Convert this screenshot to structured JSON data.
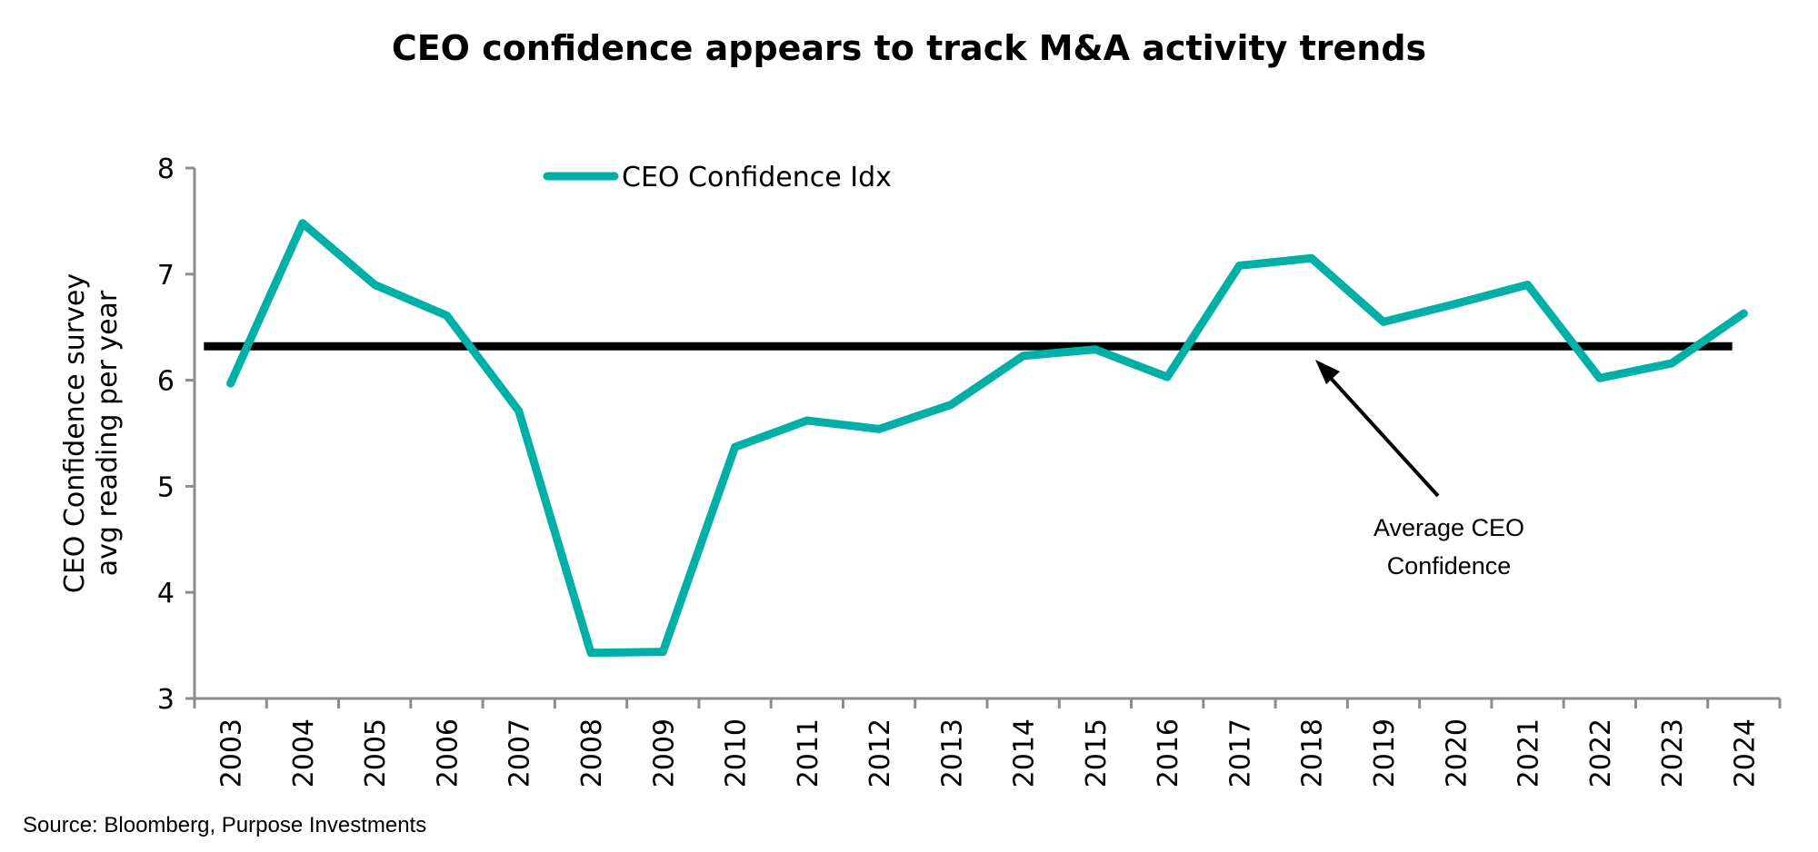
{
  "chart_data": {
    "type": "line",
    "title": "CEO confidence appears to track M&A activity trends",
    "ylabel": [
      "CEO Confidence survey",
      "avg reading per year"
    ],
    "xlabel": "",
    "ylim": [
      3,
      8
    ],
    "yticks": [
      "3",
      "4",
      "5",
      "6",
      "7",
      "8"
    ],
    "categories": [
      "2003",
      "2004",
      "2005",
      "2006",
      "2007",
      "2008",
      "2009",
      "2010",
      "2011",
      "2012",
      "2013",
      "2014",
      "2015",
      "2016",
      "2017",
      "2018",
      "2019",
      "2020",
      "2021",
      "2022",
      "2023",
      "2024"
    ],
    "series": [
      {
        "name": "CEO Confidence Idx",
        "color": "#00B0A6",
        "values": [
          5.97,
          7.48,
          6.9,
          6.61,
          5.71,
          3.43,
          3.44,
          5.37,
          5.62,
          5.54,
          5.77,
          6.23,
          6.29,
          6.03,
          7.08,
          7.15,
          6.55,
          6.72,
          6.9,
          6.02,
          6.16,
          6.63
        ]
      }
    ],
    "reference_line": {
      "value": 6.32,
      "color": "#000000"
    },
    "annotation": [
      "Average CEO",
      "Confidence"
    ],
    "legend_position": "top-center",
    "grid": false,
    "source": "Source: Bloomberg, Purpose Investments"
  }
}
